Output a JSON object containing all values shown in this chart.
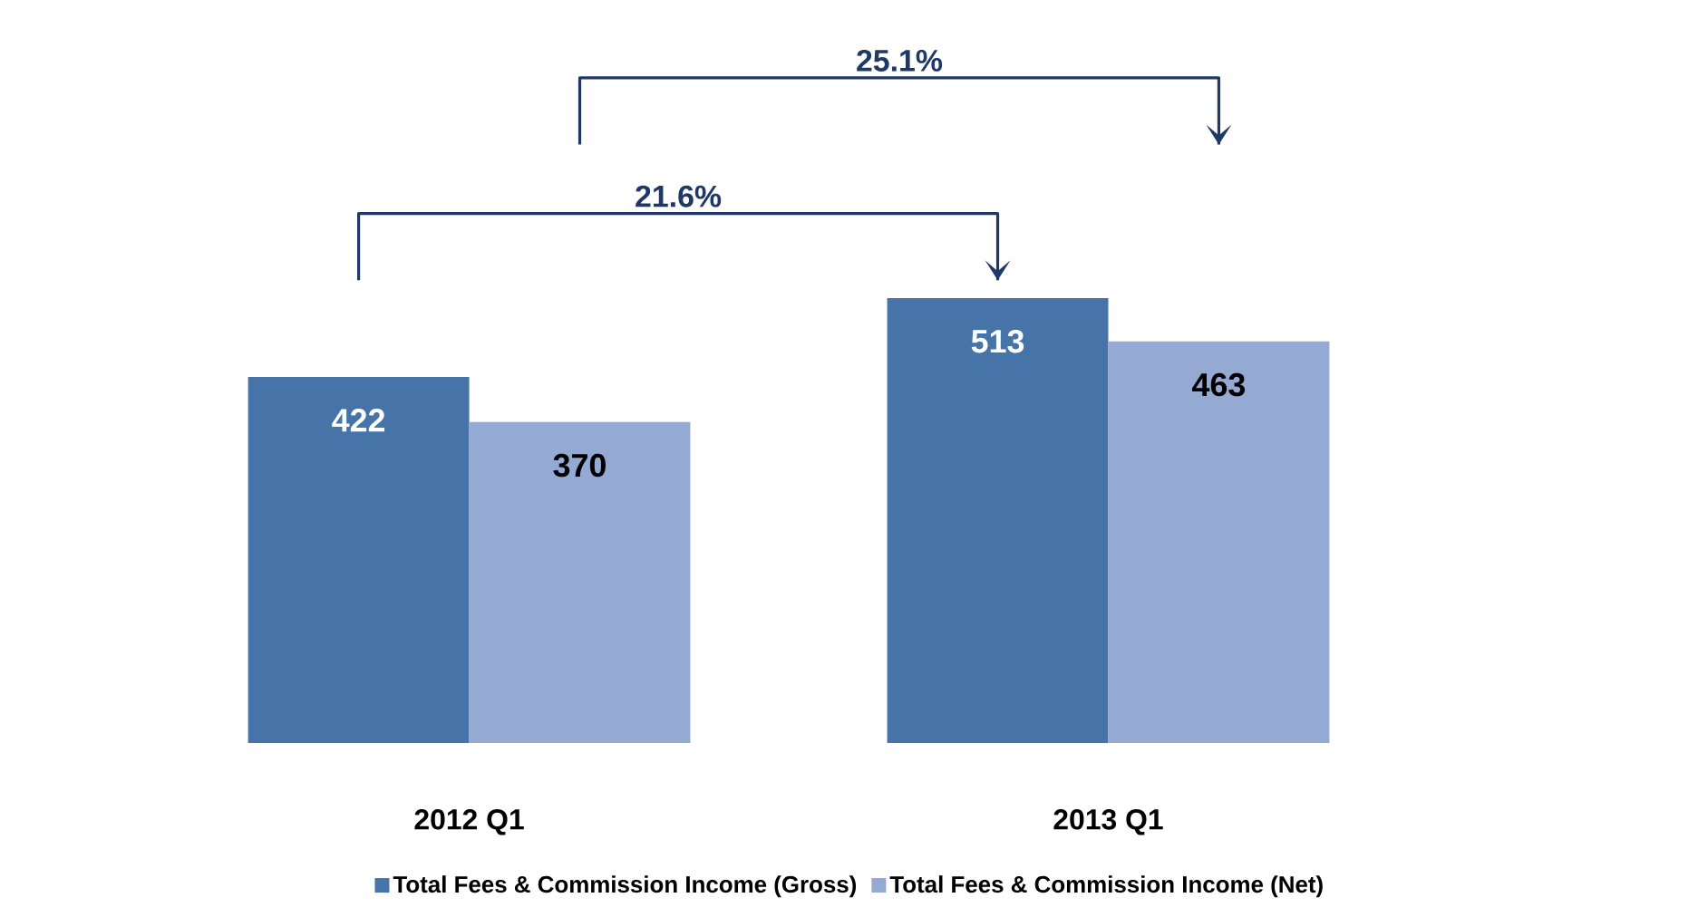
{
  "chart_data": {
    "type": "bar",
    "categories": [
      "2012 Q1",
      "2013 Q1"
    ],
    "series": [
      {
        "name": "Total Fees & Commission Income (Gross)",
        "color": "#4674a8",
        "values": [
          422,
          513
        ]
      },
      {
        "name": "Total Fees & Commission Income (Net)",
        "color": "#95aad3",
        "values": [
          370,
          463
        ]
      }
    ],
    "data_labels": true,
    "legend": "bottom",
    "annotations": [
      "21.6%",
      "25.1%"
    ]
  }
}
